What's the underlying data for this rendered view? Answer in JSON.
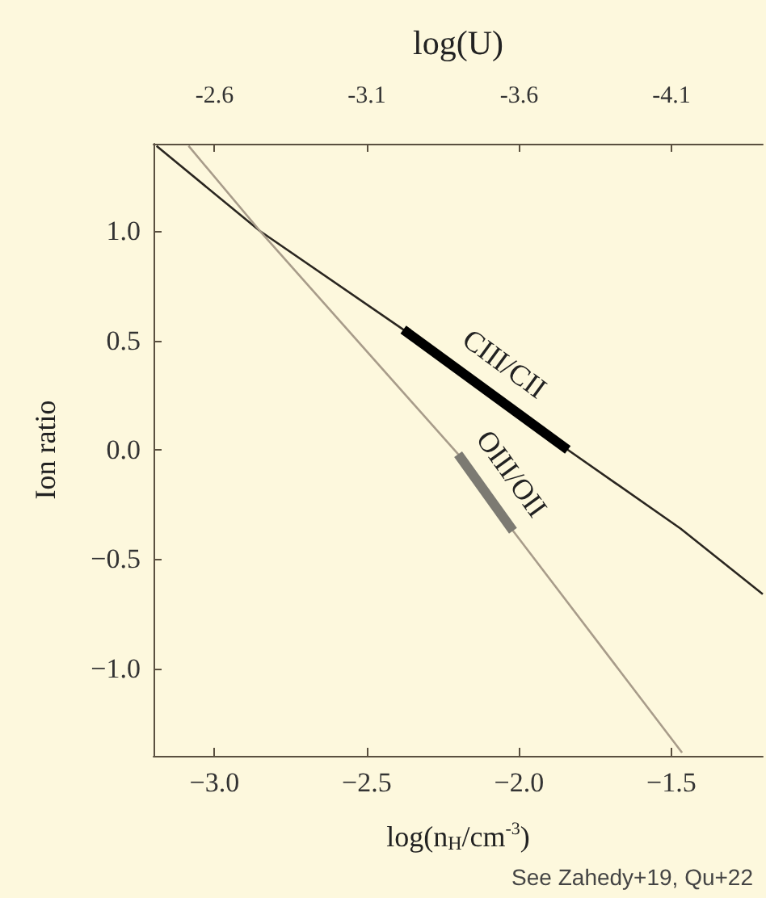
{
  "chart_data": {
    "type": "line",
    "xlabel": "log(n$_{H}$/cm$^{-3}$)",
    "ylabel": "Ion ratio",
    "x2label": "log(U)",
    "xlim": [
      -3.2,
      -1.2
    ],
    "xticks": [
      {
        "value": -3,
        "label": "−3.0"
      },
      {
        "value": -2.5,
        "label": "−2.5"
      },
      {
        "value": -2,
        "label": "−2.0"
      },
      {
        "value": -1.5,
        "label": "−1.5"
      }
    ],
    "ylim": [
      -1.4,
      1.4
    ],
    "yticks": [
      {
        "value": 1,
        "label": "1.0"
      },
      {
        "value": 0.5,
        "label": "0.5"
      },
      {
        "value": 0,
        "label": "0.0"
      },
      {
        "value": -0.5,
        "label": "−0.5"
      },
      {
        "value": -1,
        "label": "−1.0"
      }
    ],
    "x2lim": [
      -2.4,
      -4.4
    ],
    "x2ticks": [
      -2.6,
      -3.1,
      -3.6,
      -4.1
    ],
    "grid": false,
    "legend": false,
    "marker": "none",
    "line_style": "solid",
    "series": [
      {
        "color": "#2a2620",
        "x": [
          -3.19,
          -2.85,
          -2.38,
          -1.84,
          -1.47,
          -1.2
        ],
        "values": [
          1.39,
          1.0,
          0.55,
          0.0,
          -0.36,
          -0.66
        ]
      },
      {
        "color": "#a89c8a",
        "x": [
          -3.085,
          -2.85,
          -2.2,
          -2.02,
          -1.465
        ],
        "values": [
          1.39,
          1.0,
          -0.02,
          -0.37,
          -1.385
        ]
      },
      {
        "name": "CIII/CII",
        "color": "#000000",
        "x": [
          -2.38,
          -1.84
        ],
        "values": [
          0.55,
          0.0
        ]
      },
      {
        "name": "OIII/OII",
        "color": "#7c7a72",
        "x": [
          -2.2,
          -2.02
        ],
        "values": [
          -0.02,
          -0.37
        ]
      }
    ],
    "annotations": [
      "See Zahedy+19, Qu+22"
    ]
  }
}
